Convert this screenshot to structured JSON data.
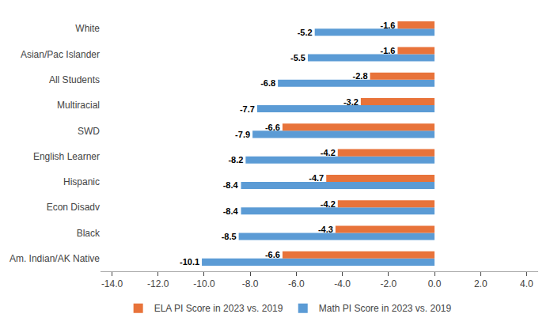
{
  "chart_data": {
    "type": "bar",
    "orientation": "horizontal",
    "categories": [
      "Am. Indian/AK Native",
      "Black",
      "Econ Disadv",
      "Hispanic",
      "English Learner",
      "SWD",
      "Multiracial",
      "All Students",
      "Asian/Pac Islander",
      "White"
    ],
    "series": [
      {
        "name": "ELA PI Score in 2023 vs. 2019",
        "color": "#E8733A",
        "values": [
          -6.6,
          -4.3,
          -4.2,
          -4.7,
          -4.2,
          -6.6,
          -3.2,
          -2.8,
          -1.6,
          -1.6
        ]
      },
      {
        "name": "Math PI Score in 2023 vs. 2019",
        "color": "#5B9BD5",
        "values": [
          -10.1,
          -8.5,
          -8.4,
          -8.4,
          -8.2,
          -7.9,
          -7.7,
          -6.8,
          -5.5,
          -5.2
        ]
      }
    ],
    "xlim": [
      -14.5,
      4.5
    ],
    "xticks": [
      {
        "value": -14.0,
        "label": "-14.0"
      },
      {
        "value": -12.0,
        "label": "-12.0"
      },
      {
        "value": -10.0,
        "label": "-10.0"
      },
      {
        "value": -8.0,
        "label": "-8.0"
      },
      {
        "value": -6.0,
        "label": "-6.0"
      },
      {
        "value": -4.0,
        "label": "-4.0"
      },
      {
        "value": -2.0,
        "label": "-2.0"
      },
      {
        "value": 0.0,
        "label": "0.0"
      },
      {
        "value": 2.0,
        "label": "2.0"
      },
      {
        "value": 4.0,
        "label": "4.0"
      }
    ],
    "grid": false,
    "data_labels": true,
    "legend": "bottom"
  }
}
